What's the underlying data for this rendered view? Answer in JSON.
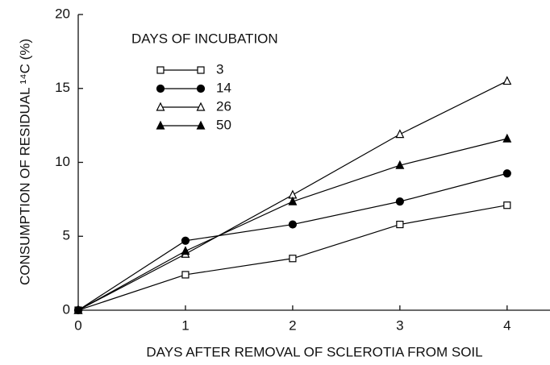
{
  "chart_data": {
    "type": "line",
    "x_label": "DAYS AFTER REMOVAL OF SCLEROTIA FROM SOIL",
    "y_label": "CONSUMPTION OF RESIDUAL ¹⁴C (%)",
    "legend_title": "DAYS OF INCUBATION",
    "legend_position": "upper left",
    "x": [
      0,
      1,
      2,
      3,
      4
    ],
    "xlim": [
      0,
      4.4
    ],
    "xticks": [
      0,
      1,
      2,
      3,
      4
    ],
    "ylim": [
      0,
      20
    ],
    "yticks": [
      0,
      5,
      10,
      15,
      20
    ],
    "grid": false,
    "series": [
      {
        "name": "3",
        "color": "#000000",
        "marker": "square",
        "filled": false,
        "values": [
          0,
          2.4,
          3.5,
          5.8,
          7.1
        ]
      },
      {
        "name": "14",
        "color": "#000000",
        "marker": "circle",
        "filled": true,
        "values": [
          0,
          4.7,
          5.8,
          7.35,
          9.25
        ]
      },
      {
        "name": "26",
        "color": "#000000",
        "marker": "triangle",
        "filled": false,
        "values": [
          0,
          3.8,
          7.8,
          11.9,
          15.5
        ]
      },
      {
        "name": "50",
        "color": "#000000",
        "marker": "triangle",
        "filled": true,
        "values": [
          0,
          4.0,
          7.35,
          9.8,
          11.6
        ]
      }
    ]
  }
}
